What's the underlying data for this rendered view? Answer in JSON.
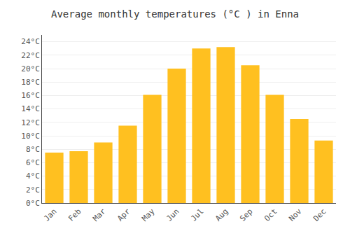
{
  "chart_data": {
    "type": "bar",
    "title": "Average monthly temperatures (°C ) in Enna",
    "categories": [
      "Jan",
      "Feb",
      "Mar",
      "Apr",
      "May",
      "Jun",
      "Jul",
      "Aug",
      "Sep",
      "Oct",
      "Nov",
      "Dec"
    ],
    "values": [
      7.5,
      7.7,
      9.0,
      11.5,
      16.1,
      20.0,
      23.0,
      23.2,
      20.5,
      16.1,
      12.5,
      9.3
    ],
    "color": "#FFC020",
    "ylim": [
      0,
      25
    ],
    "yticks": [
      {
        "value": 0,
        "label": "0°C"
      },
      {
        "value": 2,
        "label": "2°C"
      },
      {
        "value": 4,
        "label": "4°C"
      },
      {
        "value": 6,
        "label": "6°C"
      },
      {
        "value": 8,
        "label": "8°C"
      },
      {
        "value": 10,
        "label": "10°C"
      },
      {
        "value": 12,
        "label": "12°C"
      },
      {
        "value": 14,
        "label": "14°C"
      },
      {
        "value": 16,
        "label": "16°C"
      },
      {
        "value": 18,
        "label": "18°C"
      },
      {
        "value": 20,
        "label": "20°C"
      },
      {
        "value": 22,
        "label": "22°C"
      },
      {
        "value": 24,
        "label": "24°C"
      }
    ],
    "grid": true
  }
}
